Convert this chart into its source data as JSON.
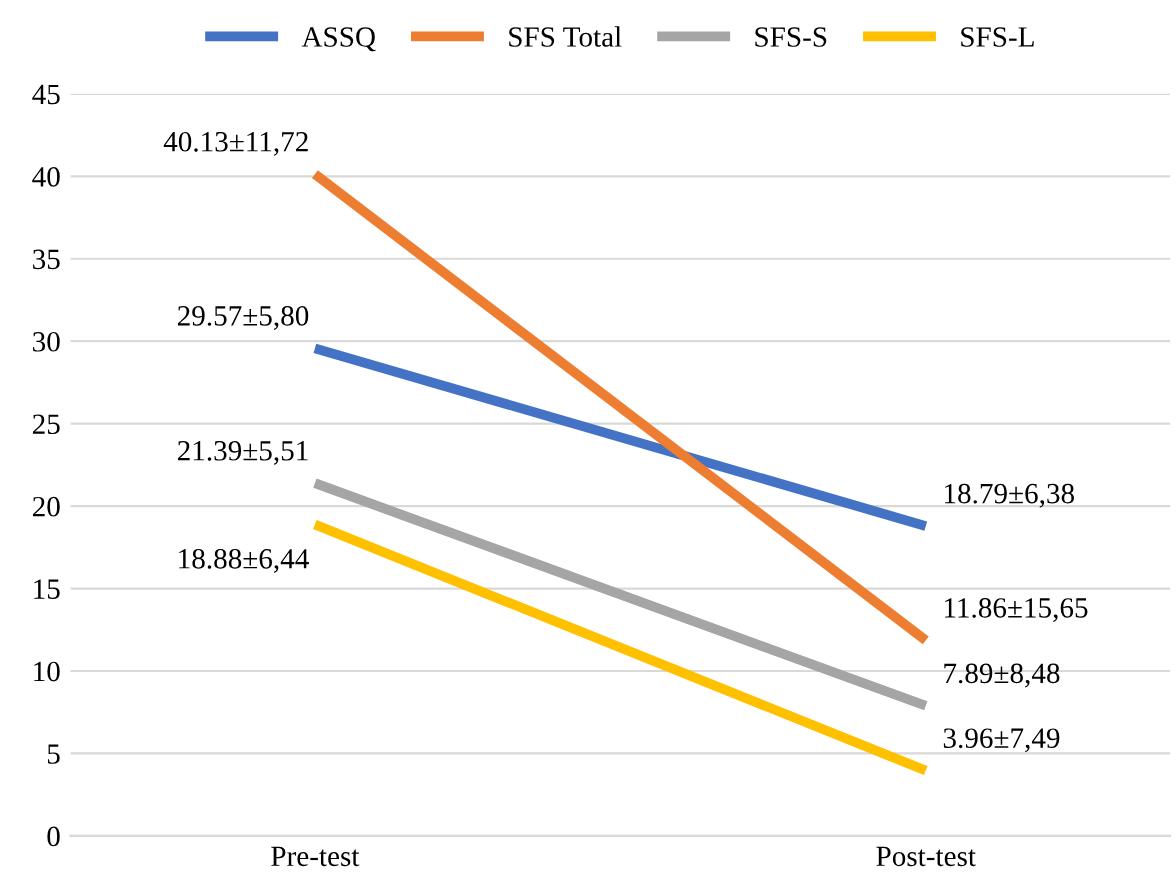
{
  "chart_data": {
    "type": "line",
    "categories": [
      "Pre-test",
      "Post-test"
    ],
    "series": [
      {
        "name": "ASSQ",
        "color": "#4472c4",
        "values": [
          29.57,
          18.79
        ],
        "value_labels": [
          "29.57±5,80",
          "18.79±6,38"
        ]
      },
      {
        "name": "SFS Total",
        "color": "#ed7d31",
        "values": [
          40.13,
          11.86
        ],
        "value_labels": [
          "40.13±11,72",
          "11.86±15,65"
        ]
      },
      {
        "name": "SFS-S",
        "color": "#a5a5a5",
        "values": [
          21.39,
          7.89
        ],
        "value_labels": [
          "21.39±5,51",
          "7.89±8,48"
        ]
      },
      {
        "name": "SFS-L",
        "color": "#ffc000",
        "values": [
          18.88,
          3.96
        ],
        "value_labels": [
          "18.88±6,44",
          "3.96±7,49"
        ]
      }
    ],
    "ylim": [
      0,
      45
    ],
    "yticks": [
      0,
      5,
      10,
      15,
      20,
      25,
      30,
      35,
      40,
      45
    ],
    "grid": "y",
    "legend": "top",
    "marker": "none",
    "line_style": "solid"
  }
}
